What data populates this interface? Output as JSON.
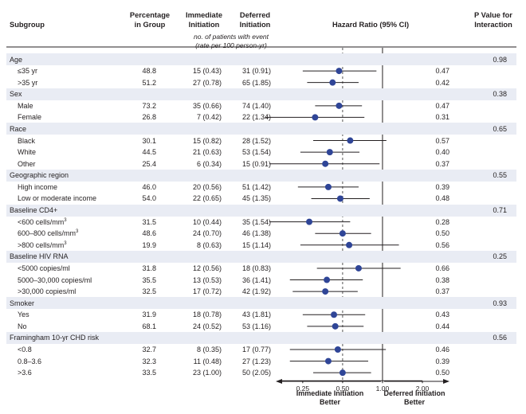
{
  "headers": {
    "subgroup": "Subgroup",
    "pct_line1": "Percentage",
    "pct_line2": "in Group",
    "imm_line1": "Immediate",
    "imm_line2": "Initiation",
    "def_line1": "Deferred",
    "def_line2": "Initiation",
    "hr": "Hazard Ratio (95% CI)",
    "pint_line1": "P Value for",
    "pint_line2": "Interaction",
    "note_line1": "no. of patients with event",
    "note_line2": "(rate per 100 person-yr)"
  },
  "axis_labels": {
    "left_line1": "Immediate Initiation",
    "left_line2": "Better",
    "right_line1": "Deferred Initiation",
    "right_line2": "Better"
  },
  "colors": {
    "band": "#e9ecf4",
    "marker": "#2f4597",
    "ci_line": "#231f20",
    "ref_line": "#231f20",
    "dashed": "#555555"
  },
  "chart_data": {
    "type": "forest",
    "title": "Hazard Ratio (95% CI)",
    "xscale": "log",
    "xlim": [
      0.17,
      2.0
    ],
    "ticks": [
      0.25,
      0.5,
      1.0,
      2.0
    ],
    "tick_labels": [
      "0.25",
      "0.50",
      "1.00",
      "2.00"
    ],
    "reference_line": 1.0,
    "overall_line": 0.5,
    "groups": [
      {
        "label": "Age",
        "p_interaction": "0.98",
        "rows": [
          {
            "label": "≤35 yr",
            "pct": "48.8",
            "immediate": "15 (0.43)",
            "deferred": "31 (0.91)",
            "hr": 0.47,
            "lo": 0.25,
            "hi": 0.9,
            "p": "0.47"
          },
          {
            "label": ">35 yr",
            "pct": "51.2",
            "immediate": "27 (0.78)",
            "deferred": "65 (1.85)",
            "hr": 0.42,
            "lo": 0.27,
            "hi": 0.66,
            "p": "0.42"
          }
        ]
      },
      {
        "label": "Sex",
        "p_interaction": "0.38",
        "rows": [
          {
            "label": "Male",
            "pct": "73.2",
            "immediate": "35 (0.66)",
            "deferred": "74 (1.40)",
            "hr": 0.47,
            "lo": 0.31,
            "hi": 0.7,
            "p": "0.47"
          },
          {
            "label": "Female",
            "pct": "26.8",
            "immediate": "7 (0.42)",
            "deferred": "22 (1.34)",
            "hr": 0.31,
            "lo": 0.13,
            "hi": 0.73,
            "p": "0.31"
          }
        ]
      },
      {
        "label": "Race",
        "p_interaction": "0.65",
        "rows": [
          {
            "label": "Black",
            "pct": "30.1",
            "immediate": "15 (0.82)",
            "deferred": "28 (1.52)",
            "hr": 0.57,
            "lo": 0.3,
            "hi": 1.07,
            "p": "0.57"
          },
          {
            "label": "White",
            "pct": "44.5",
            "immediate": "21 (0.63)",
            "deferred": "53 (1.54)",
            "hr": 0.4,
            "lo": 0.24,
            "hi": 0.67,
            "p": "0.40"
          },
          {
            "label": "Other",
            "pct": "25.4",
            "immediate": "6 (0.34)",
            "deferred": "15 (0.91)",
            "hr": 0.37,
            "lo": 0.14,
            "hi": 0.95,
            "p": "0.37"
          }
        ]
      },
      {
        "label": "Geographic region",
        "p_interaction": "0.55",
        "rows": [
          {
            "label": "High income",
            "pct": "46.0",
            "immediate": "20 (0.56)",
            "deferred": "51 (1.42)",
            "hr": 0.39,
            "lo": 0.23,
            "hi": 0.66,
            "p": "0.39"
          },
          {
            "label": "Low or moderate income",
            "pct": "54.0",
            "immediate": "22 (0.65)",
            "deferred": "45 (1.35)",
            "hr": 0.48,
            "lo": 0.29,
            "hi": 0.8,
            "p": "0.48"
          }
        ]
      },
      {
        "label": "Baseline CD4+",
        "p_interaction": "0.71",
        "rows": [
          {
            "label": "<600 cells/mm",
            "sup": "3",
            "pct": "31.5",
            "immediate": "10 (0.44)",
            "deferred": "35 (1.54)",
            "hr": 0.28,
            "lo": 0.14,
            "hi": 0.57,
            "p": "0.28"
          },
          {
            "label": "600–800 cells/mm",
            "sup": "3",
            "pct": "48.6",
            "immediate": "24 (0.70)",
            "deferred": "46 (1.38)",
            "hr": 0.5,
            "lo": 0.31,
            "hi": 0.82,
            "p": "0.50"
          },
          {
            "label": ">800 cells/mm",
            "sup": "3",
            "pct": "19.9",
            "immediate": "8 (0.63)",
            "deferred": "15 (1.14)",
            "hr": 0.56,
            "lo": 0.24,
            "hi": 1.33,
            "p": "0.56"
          }
        ]
      },
      {
        "label": "Baseline HIV RNA",
        "p_interaction": "0.25",
        "rows": [
          {
            "label": "<5000 copies/ml",
            "pct": "31.8",
            "immediate": "12 (0.56)",
            "deferred": "18 (0.83)",
            "hr": 0.66,
            "lo": 0.32,
            "hi": 1.37,
            "p": "0.66"
          },
          {
            "label": "5000–30,000 copies/ml",
            "pct": "35.5",
            "immediate": "13 (0.53)",
            "deferred": "36 (1.41)",
            "hr": 0.38,
            "lo": 0.2,
            "hi": 0.71,
            "p": "0.38"
          },
          {
            "label": ">30,000 copies/ml",
            "pct": "32.5",
            "immediate": "17 (0.72)",
            "deferred": "42 (1.92)",
            "hr": 0.37,
            "lo": 0.21,
            "hi": 0.65,
            "p": "0.37"
          }
        ]
      },
      {
        "label": "Smoker",
        "p_interaction": "0.93",
        "rows": [
          {
            "label": "Yes",
            "pct": "31.9",
            "immediate": "18 (0.78)",
            "deferred": "43 (1.81)",
            "hr": 0.43,
            "lo": 0.25,
            "hi": 0.74,
            "p": "0.43"
          },
          {
            "label": "No",
            "pct": "68.1",
            "immediate": "24 (0.52)",
            "deferred": "53 (1.16)",
            "hr": 0.44,
            "lo": 0.27,
            "hi": 0.72,
            "p": "0.44"
          }
        ]
      },
      {
        "label": "Framingham 10-yr CHD risk",
        "p_interaction": "0.56",
        "rows": [
          {
            "label": "<0.8",
            "pct": "32.7",
            "immediate": "8 (0.35)",
            "deferred": "17 (0.77)",
            "hr": 0.46,
            "lo": 0.2,
            "hi": 1.06,
            "p": "0.46"
          },
          {
            "label": "0.8–3.6",
            "pct": "32.3",
            "immediate": "11 (0.48)",
            "deferred": "27 (1.23)",
            "hr": 0.39,
            "lo": 0.2,
            "hi": 0.78,
            "p": "0.39"
          },
          {
            "label": ">3.6",
            "pct": "33.5",
            "immediate": "23 (1.00)",
            "deferred": "50 (2.05)",
            "hr": 0.5,
            "lo": 0.3,
            "hi": 0.82,
            "p": "0.50"
          }
        ]
      }
    ]
  }
}
